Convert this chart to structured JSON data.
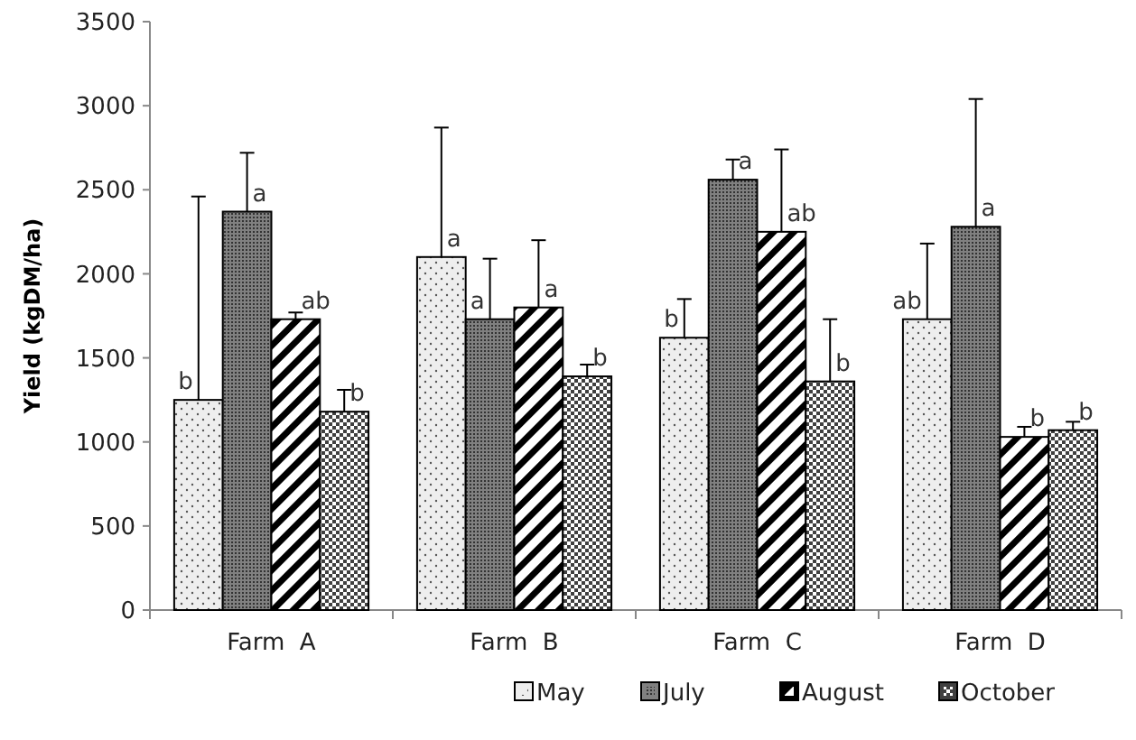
{
  "chart_data": {
    "type": "bar",
    "ylabel": "Yield (kgDM/ha)",
    "categories": [
      "Farm  A",
      "Farm  B",
      "Farm  C",
      "Farm  D"
    ],
    "ylim": [
      0,
      3500
    ],
    "yticks": [
      0,
      500,
      1000,
      1500,
      2000,
      2500,
      3000,
      3500
    ],
    "grid": false,
    "legend": "bottom",
    "series": [
      {
        "name": "May",
        "color": "#eeeeee",
        "values": [
          1250,
          2100,
          1620,
          1730
        ],
        "errors": [
          [
            1250,
            2460
          ],
          [
            2100,
            2870
          ],
          [
            1620,
            1850
          ],
          [
            1730,
            2180
          ]
        ],
        "value_labels": [
          "b",
          "a",
          "b",
          "ab"
        ]
      },
      {
        "name": "July",
        "color": "#808080",
        "values": [
          2370,
          1730,
          2560,
          2280
        ],
        "errors": [
          [
            2370,
            2720
          ],
          [
            1730,
            2090
          ],
          [
            2560,
            2680
          ],
          [
            2280,
            3040
          ]
        ],
        "value_labels": [
          "a",
          "a",
          "a",
          "a"
        ]
      },
      {
        "name": "August",
        "color": "#000000",
        "values": [
          1730,
          1800,
          2250,
          1030
        ],
        "errors": [
          [
            1730,
            1770
          ],
          [
            1800,
            2200
          ],
          [
            2250,
            2740
          ],
          [
            1030,
            1090
          ]
        ],
        "value_labels": [
          "ab",
          "a",
          "ab",
          "b"
        ]
      },
      {
        "name": "October",
        "color": "#404040",
        "values": [
          1180,
          1390,
          1360,
          1070
        ],
        "errors": [
          [
            1180,
            1310
          ],
          [
            1390,
            1460
          ],
          [
            1360,
            1730
          ],
          [
            1070,
            1120
          ]
        ],
        "value_labels": [
          "b",
          "b",
          "b",
          "b"
        ]
      }
    ]
  }
}
